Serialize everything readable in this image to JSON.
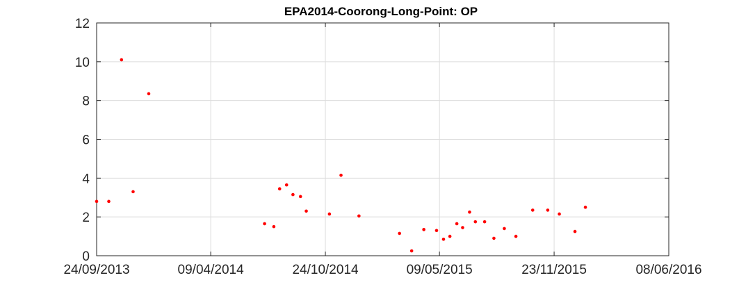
{
  "chart_data": {
    "type": "scatter",
    "title": "EPA2014-Coorong-Long-Point: OP",
    "xlabel": "",
    "ylabel": "",
    "x_type": "date",
    "xlim": [
      "2013-09-24",
      "2016-06-08"
    ],
    "ylim": [
      0,
      12
    ],
    "x_ticks": [
      "2013-09-24",
      "2014-04-09",
      "2014-10-24",
      "2015-05-09",
      "2015-11-23",
      "2016-06-08"
    ],
    "x_tick_labels": [
      "24/09/2013",
      "09/04/2014",
      "24/10/2014",
      "09/05/2015",
      "23/11/2015",
      "08/06/2016"
    ],
    "y_ticks": [
      0,
      2,
      4,
      6,
      8,
      10,
      12
    ],
    "y_tick_labels": [
      "0",
      "2",
      "4",
      "6",
      "8",
      "10",
      "12"
    ],
    "grid": true,
    "legend": "none",
    "marker_color": "#ff0000",
    "series": [
      {
        "points": [
          [
            "2013-09-24",
            2.8
          ],
          [
            "2013-10-15",
            2.8
          ],
          [
            "2013-11-06",
            10.1
          ],
          [
            "2013-11-26",
            3.3
          ],
          [
            "2013-12-23",
            8.35
          ],
          [
            "2014-07-11",
            1.65
          ],
          [
            "2014-07-27",
            1.5
          ],
          [
            "2014-08-06",
            3.45
          ],
          [
            "2014-08-18",
            3.65
          ],
          [
            "2014-08-29",
            3.15
          ],
          [
            "2014-09-11",
            3.05
          ],
          [
            "2014-09-21",
            2.3
          ],
          [
            "2014-10-31",
            2.15
          ],
          [
            "2014-11-20",
            4.15
          ],
          [
            "2014-12-21",
            2.05
          ],
          [
            "2015-03-01",
            1.15
          ],
          [
            "2015-03-22",
            0.25
          ],
          [
            "2015-04-12",
            1.35
          ],
          [
            "2015-05-04",
            1.3
          ],
          [
            "2015-05-16",
            0.85
          ],
          [
            "2015-05-27",
            1.0
          ],
          [
            "2015-06-08",
            1.65
          ],
          [
            "2015-06-18",
            1.45
          ],
          [
            "2015-06-30",
            2.25
          ],
          [
            "2015-07-10",
            1.75
          ],
          [
            "2015-07-26",
            1.75
          ],
          [
            "2015-08-11",
            0.9
          ],
          [
            "2015-08-29",
            1.4
          ],
          [
            "2015-09-18",
            1.0
          ],
          [
            "2015-10-17",
            2.35
          ],
          [
            "2015-11-12",
            2.35
          ],
          [
            "2015-12-02",
            2.15
          ],
          [
            "2015-12-29",
            1.25
          ],
          [
            "2016-01-16",
            2.5
          ]
        ]
      }
    ]
  }
}
